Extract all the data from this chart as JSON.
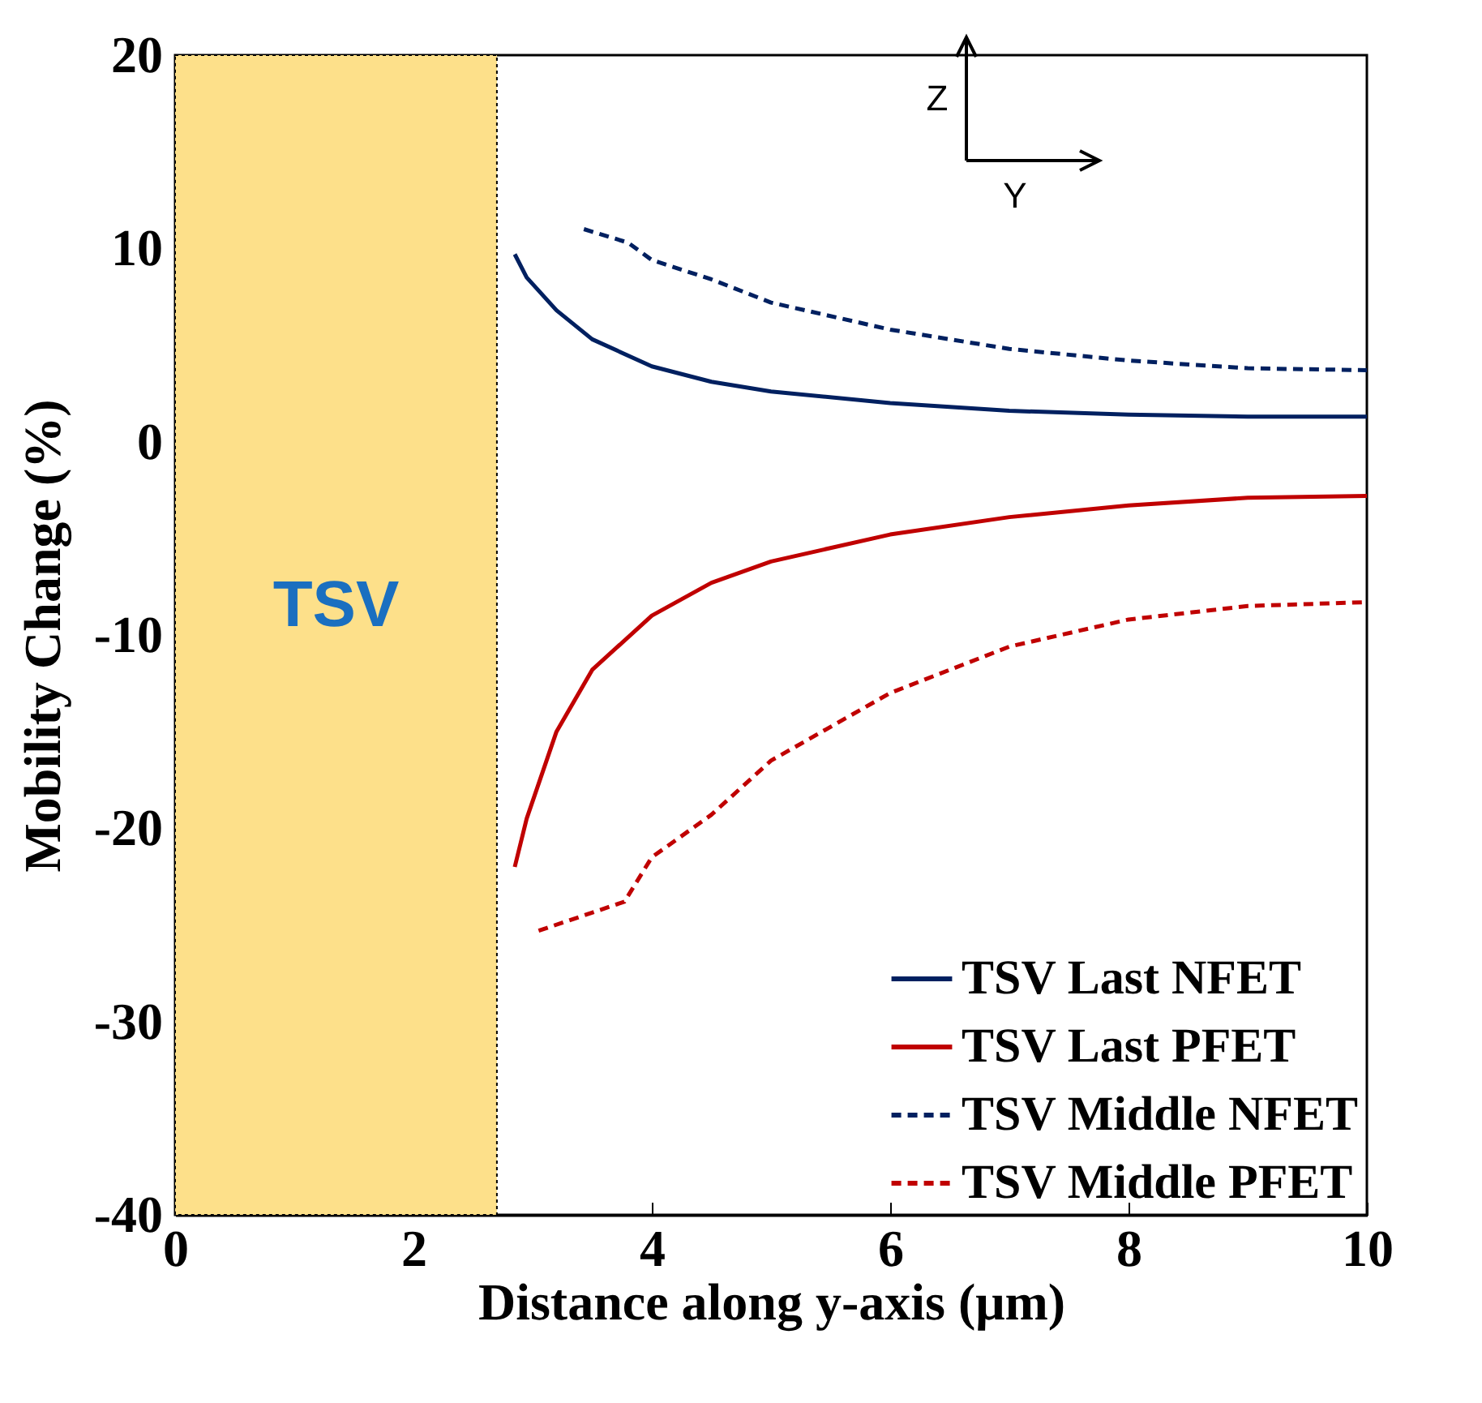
{
  "chart_data": {
    "type": "line",
    "xlabel": "Distance along y-axis (μm)",
    "ylabel": "Mobility Change (%)",
    "xlim": [
      0,
      10
    ],
    "xticks": [
      0,
      2,
      4,
      6,
      8,
      10
    ],
    "ylim": [
      -40,
      20
    ],
    "yticks": [
      -40,
      -30,
      -20,
      -10,
      0,
      10,
      20
    ],
    "grid": false,
    "legend": "bottom right",
    "marker": "none",
    "bands": [
      {
        "axis": "x",
        "from": 0,
        "to": 2.7,
        "label": "TSV",
        "color": "#fde08a"
      }
    ],
    "annotations": [
      "Z",
      "Y"
    ],
    "series": [
      {
        "name": "TSV Last NFET",
        "color": "#002060",
        "line_style": "solid",
        "x": [
          2.85,
          2.95,
          3.2,
          3.5,
          4,
          4.5,
          5,
          6,
          7,
          8,
          9,
          10
        ],
        "values": [
          9.7,
          8.5,
          6.8,
          5.3,
          3.9,
          3.1,
          2.6,
          2.0,
          1.6,
          1.4,
          1.3,
          1.3
        ]
      },
      {
        "name": "TSV Last PFET",
        "color": "#c00000",
        "line_style": "solid",
        "x": [
          2.85,
          2.95,
          3.2,
          3.5,
          4,
          4.5,
          5,
          6,
          7,
          8,
          9,
          10
        ],
        "values": [
          -22,
          -19.5,
          -15,
          -11.8,
          -9,
          -7.3,
          -6.2,
          -4.8,
          -3.9,
          -3.3,
          -2.9,
          -2.8
        ]
      },
      {
        "name": "TSV Middle NFET",
        "color": "#002060",
        "line_style": "dashed",
        "x": [
          3.43,
          3.8,
          4,
          4.5,
          5,
          6,
          7,
          8,
          9,
          10
        ],
        "values": [
          11.0,
          10.3,
          9.4,
          8.4,
          7.2,
          5.8,
          4.8,
          4.2,
          3.8,
          3.7
        ]
      },
      {
        "name": "TSV Middle PFET",
        "color": "#c00000",
        "line_style": "dashed",
        "x": [
          3.05,
          3.77,
          4,
          4.5,
          5,
          6,
          7,
          8,
          9,
          10
        ],
        "values": [
          -25.3,
          -23.8,
          -21.5,
          -19.3,
          -16.5,
          -13,
          -10.6,
          -9.2,
          -8.5,
          -8.3
        ]
      }
    ]
  }
}
